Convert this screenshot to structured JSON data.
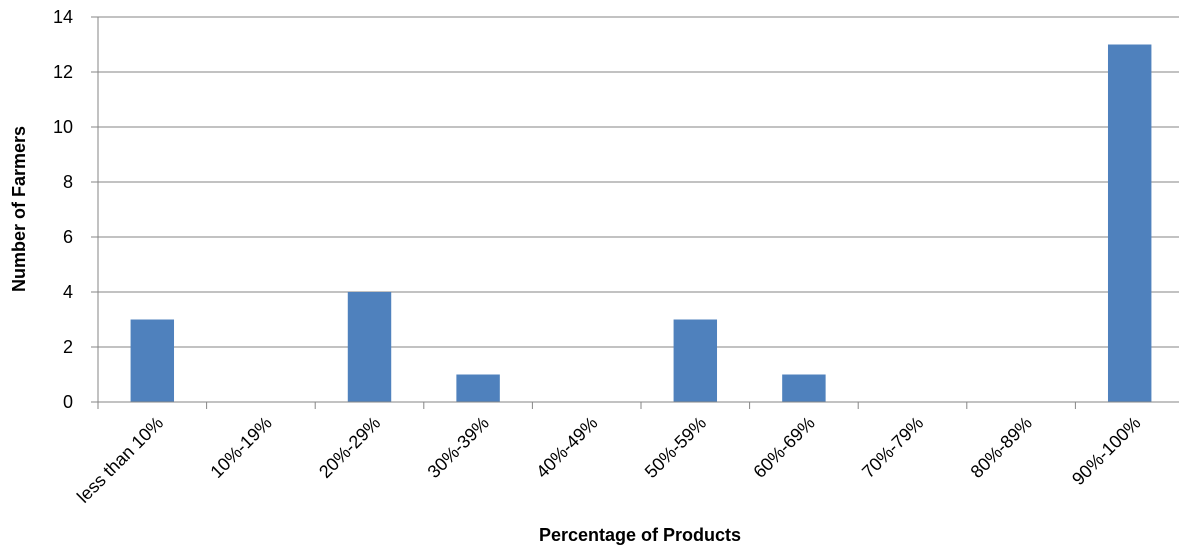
{
  "chart_data": {
    "type": "bar",
    "title": "",
    "xlabel": "Percentage of Products",
    "ylabel": "Number of Farmers",
    "categories": [
      "less than 10%",
      "10%-19%",
      "20%-29%",
      "30%-39%",
      "40%-49%",
      "50%-59%",
      "60%-69%",
      "70%-79%",
      "80%-89%",
      "90%-100%"
    ],
    "values": [
      3,
      0,
      4,
      1,
      0,
      3,
      1,
      0,
      0,
      13
    ],
    "ylim": [
      0,
      14
    ],
    "yticks": [
      0,
      2,
      4,
      6,
      8,
      10,
      12,
      14
    ],
    "grid": true,
    "legend": "none",
    "bar_color": "#4F81BD",
    "grid_color": "#868686"
  }
}
